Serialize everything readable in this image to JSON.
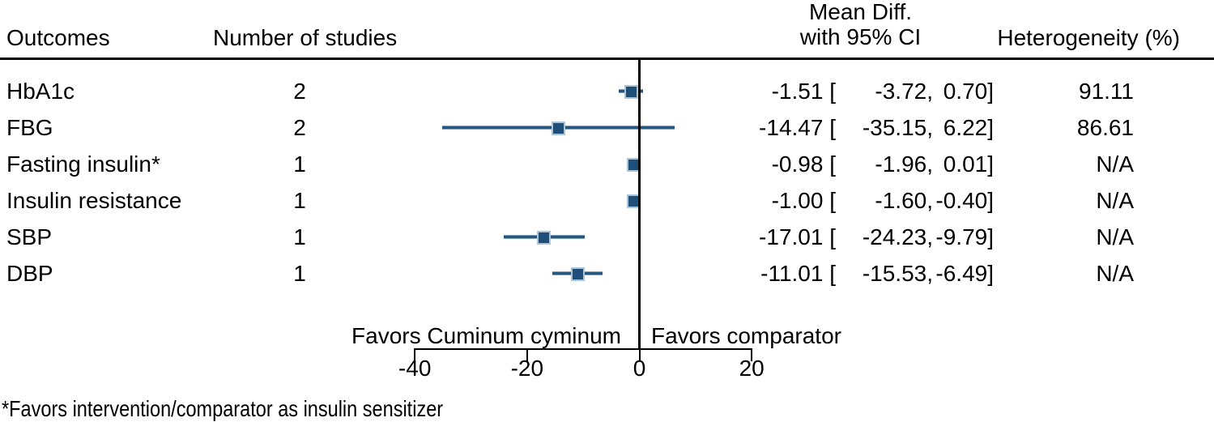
{
  "header": {
    "outcomes": "Outcomes",
    "number_of_studies": "Number of studies",
    "mean_diff_line1": "Mean Diff.",
    "mean_diff_line2": "with 95% CI",
    "heterogeneity": "Heterogeneity (%)"
  },
  "favors_left": "Favors Cuminum cyminum",
  "favors_right": "Favors comparator",
  "footnote": "*Favors intervention/comparator as insulin sensitizer",
  "colors": {
    "marker_fill": "#1f4e79",
    "marker_halo": "#aac4da",
    "ci_line": "#27567f",
    "ci_line_halo": "#7fa2c1",
    "axis": "#000000"
  },
  "chart_data": {
    "type": "forest",
    "title": "",
    "xlim": [
      -40,
      20
    ],
    "x_ticks": [
      {
        "value": -40,
        "label": "-40"
      },
      {
        "value": -20,
        "label": "-20"
      },
      {
        "value": 0,
        "label": "0"
      },
      {
        "value": 20,
        "label": "20"
      }
    ],
    "zero_reference": 0,
    "rows": [
      {
        "outcome": "HbA1c",
        "n_studies": "2",
        "est": -1.51,
        "lo": -3.72,
        "hi": 0.7,
        "ci_part1": "-1.51 [",
        "ci_part2": "-3.72,",
        "ci_part3": "0.70]",
        "heterogeneity": "91.11"
      },
      {
        "outcome": "FBG",
        "n_studies": "2",
        "est": -14.47,
        "lo": -35.15,
        "hi": 6.22,
        "ci_part1": "-14.47 [",
        "ci_part2": "-35.15,",
        "ci_part3": "6.22]",
        "heterogeneity": "86.61"
      },
      {
        "outcome": "Fasting insulin*",
        "n_studies": "1",
        "est": -0.98,
        "lo": -1.96,
        "hi": 0.01,
        "ci_part1": "-0.98 [",
        "ci_part2": "-1.96,",
        "ci_part3": "0.01]",
        "heterogeneity": "N/A"
      },
      {
        "outcome": "Insulin resistance",
        "n_studies": "1",
        "est": -1.0,
        "lo": -1.6,
        "hi": -0.4,
        "ci_part1": "-1.00 [",
        "ci_part2": "-1.60,",
        "ci_part3": "-0.40]",
        "heterogeneity": "N/A"
      },
      {
        "outcome": "SBP",
        "n_studies": "1",
        "est": -17.01,
        "lo": -24.23,
        "hi": -9.79,
        "ci_part1": "-17.01 [",
        "ci_part2": "-24.23,",
        "ci_part3": "-9.79]",
        "heterogeneity": "N/A"
      },
      {
        "outcome": "DBP",
        "n_studies": "1",
        "est": -11.01,
        "lo": -15.53,
        "hi": -6.49,
        "ci_part1": "-11.01 [",
        "ci_part2": "-15.53,",
        "ci_part3": "-6.49]",
        "heterogeneity": "N/A"
      }
    ]
  }
}
